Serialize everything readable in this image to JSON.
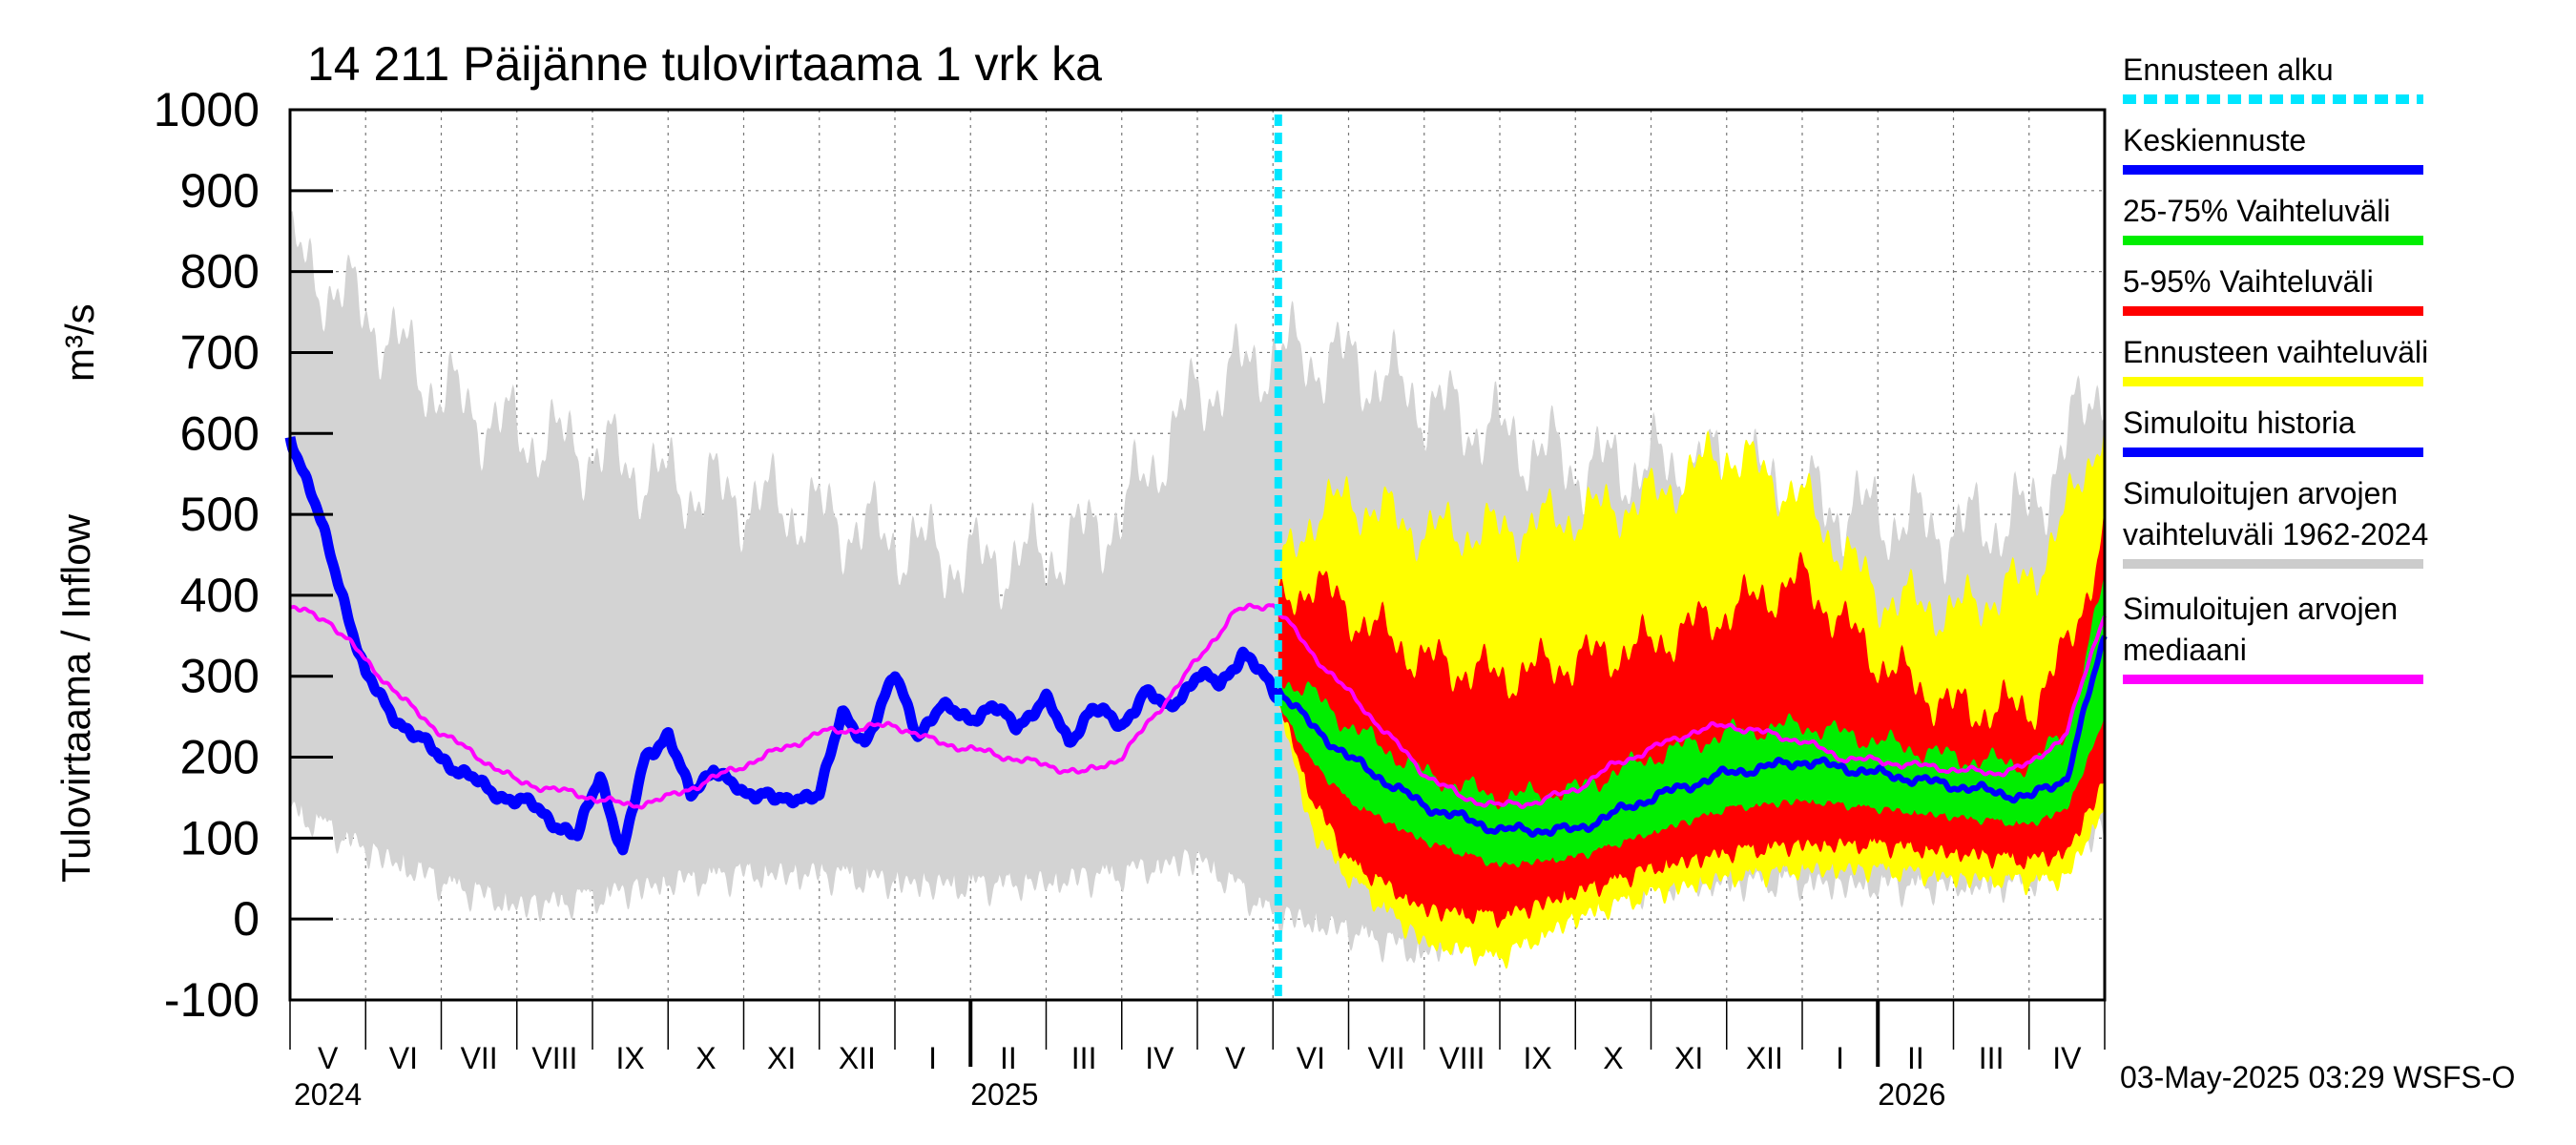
{
  "chart_data": {
    "type": "area",
    "title": "14 211 Päijänne tulovirtaama 1 vrk ka",
    "ylabel": "Tulovirtaama / Inflow",
    "yunit": "m³/s",
    "ylim": [
      -100,
      1000
    ],
    "yticks": [
      -100,
      0,
      100,
      200,
      300,
      400,
      500,
      600,
      700,
      800,
      900,
      1000
    ],
    "xrange_months": [
      0,
      24
    ],
    "x_unit": "months since 2024-04-01",
    "forecast_start_month": 13.07,
    "month_labels": [
      "V",
      "VI",
      "VII",
      "VIII",
      "IX",
      "X",
      "XI",
      "XII",
      "I",
      "II",
      "III",
      "IV",
      "V",
      "VI",
      "VII",
      "VIII",
      "IX",
      "X",
      "XI",
      "XII",
      "I",
      "II",
      "III",
      "IV"
    ],
    "year_labels": [
      {
        "label": "2024",
        "month": 0
      },
      {
        "label": "2025",
        "month": 9
      },
      {
        "label": "2026",
        "month": 21
      }
    ],
    "legend": [
      {
        "key": "forecast_start",
        "label": "Ennusteen alku",
        "color": "#00e6ff",
        "style": "dashed"
      },
      {
        "key": "mean_forecast",
        "label": "Keskiennuste",
        "color": "#0000ff"
      },
      {
        "key": "band_25_75",
        "label": "25-75% Vaihteluväli",
        "color": "#00ee00"
      },
      {
        "key": "band_5_95",
        "label": "5-95% Vaihteluväli",
        "color": "#ff0000"
      },
      {
        "key": "forecast_range",
        "label": "Ennusteen vaihteluväli",
        "color": "#ffff00"
      },
      {
        "key": "simulated_history",
        "label": "Simuloitu historia",
        "color": "#0000ff"
      },
      {
        "key": "sim_range",
        "label": [
          "Simuloitujen arvojen",
          "vaihteluväli 1962-2024"
        ],
        "color": "#cccccc"
      },
      {
        "key": "sim_median",
        "label": [
          "Simuloitujen arvojen",
          "mediaani"
        ],
        "color": "#ff00ff"
      }
    ],
    "legend_position": "right",
    "footer": "03-May-2025 03:29 WSFS-O",
    "series": {
      "sim_range": {
        "x": [
          0,
          1,
          2,
          3,
          4,
          5,
          6,
          7,
          8,
          9,
          10,
          11,
          12,
          13,
          14,
          15,
          16,
          17,
          18,
          19,
          20,
          21,
          22,
          23,
          24
        ],
        "low": [
          150,
          100,
          60,
          30,
          40,
          60,
          70,
          70,
          60,
          55,
          60,
          70,
          90,
          20,
          0,
          -30,
          20,
          40,
          55,
          60,
          60,
          55,
          55,
          60,
          130
        ],
        "high": [
          820,
          750,
          650,
          600,
          580,
          540,
          520,
          500,
          470,
          440,
          450,
          500,
          650,
          700,
          690,
          640,
          600,
          560,
          560,
          560,
          520,
          500,
          480,
          500,
          680
        ]
      },
      "forecast_range": {
        "x": [
          13.07,
          13.5,
          14,
          15,
          16,
          17,
          18,
          19,
          20,
          21,
          22,
          23,
          23.5,
          24
        ],
        "low": [
          280,
          120,
          60,
          -20,
          -40,
          10,
          40,
          60,
          70,
          70,
          60,
          55,
          60,
          150
        ],
        "high": [
          420,
          500,
          520,
          480,
          480,
          500,
          520,
          580,
          520,
          400,
          380,
          420,
          500,
          620
        ]
      },
      "band_5_95": {
        "x": [
          13.07,
          13.5,
          14,
          15,
          16,
          17,
          18,
          19,
          20,
          21,
          22,
          23,
          23.5,
          24
        ],
        "low": [
          280,
          160,
          80,
          20,
          10,
          40,
          70,
          90,
          100,
          100,
          90,
          80,
          90,
          180
        ],
        "high": [
          380,
          420,
          380,
          320,
          300,
          320,
          340,
          380,
          420,
          320,
          260,
          260,
          330,
          480
        ]
      },
      "band_25_75": {
        "x": [
          13.07,
          13.5,
          14,
          15,
          16,
          17,
          18,
          19,
          20,
          21,
          22,
          23,
          23.5,
          24
        ],
        "low": [
          270,
          200,
          150,
          100,
          70,
          80,
          110,
          140,
          150,
          140,
          130,
          120,
          140,
          250
        ],
        "high": [
          300,
          280,
          240,
          180,
          150,
          160,
          200,
          230,
          240,
          220,
          200,
          190,
          230,
          420
        ]
      },
      "mean_forecast": {
        "x": [
          13.07,
          13.5,
          14,
          15,
          16,
          17,
          18,
          19,
          20,
          21,
          22,
          23,
          23.5,
          24
        ],
        "y": [
          285,
          240,
          200,
          140,
          110,
          110,
          150,
          180,
          195,
          180,
          165,
          150,
          175,
          350
        ]
      },
      "simulated_history": {
        "x": [
          0,
          0.3,
          0.7,
          1,
          1.3,
          1.6,
          2,
          2.3,
          2.6,
          2.9,
          3.2,
          3.5,
          3.8,
          4.1,
          4.4,
          4.7,
          5,
          5.3,
          5.6,
          6,
          6.3,
          6.6,
          7,
          7.3,
          7.6,
          8,
          8.3,
          8.6,
          9,
          9.3,
          9.6,
          10,
          10.3,
          10.6,
          11,
          11.3,
          11.6,
          12,
          12.3,
          12.6,
          13.07
        ],
        "y": [
          600,
          520,
          400,
          300,
          260,
          230,
          200,
          180,
          160,
          150,
          140,
          120,
          100,
          180,
          80,
          200,
          230,
          150,
          190,
          150,
          160,
          140,
          160,
          250,
          220,
          300,
          230,
          260,
          250,
          260,
          240,
          270,
          220,
          260,
          240,
          280,
          260,
          300,
          290,
          330,
          275
        ]
      },
      "sim_median": {
        "x": [
          0,
          0.5,
          1,
          1.5,
          2,
          2.5,
          3,
          3.5,
          4,
          4.5,
          5,
          5.5,
          6,
          6.5,
          7,
          7.5,
          8,
          8.5,
          9,
          9.5,
          10,
          10.5,
          11,
          11.5,
          12,
          12.5,
          13,
          13.5,
          14,
          14.5,
          15,
          15.5,
          16,
          16.5,
          17,
          17.5,
          18,
          18.5,
          19,
          19.5,
          20,
          20.5,
          21,
          21.5,
          22,
          22.5,
          23,
          23.5,
          24
        ],
        "y": [
          385,
          370,
          320,
          270,
          230,
          200,
          170,
          160,
          150,
          140,
          150,
          170,
          190,
          210,
          230,
          235,
          240,
          220,
          210,
          200,
          190,
          180,
          200,
          260,
          320,
          380,
          390,
          330,
          280,
          230,
          180,
          150,
          140,
          145,
          160,
          190,
          210,
          230,
          240,
          230,
          220,
          200,
          195,
          190,
          185,
          180,
          190,
          230,
          380
        ]
      }
    }
  }
}
